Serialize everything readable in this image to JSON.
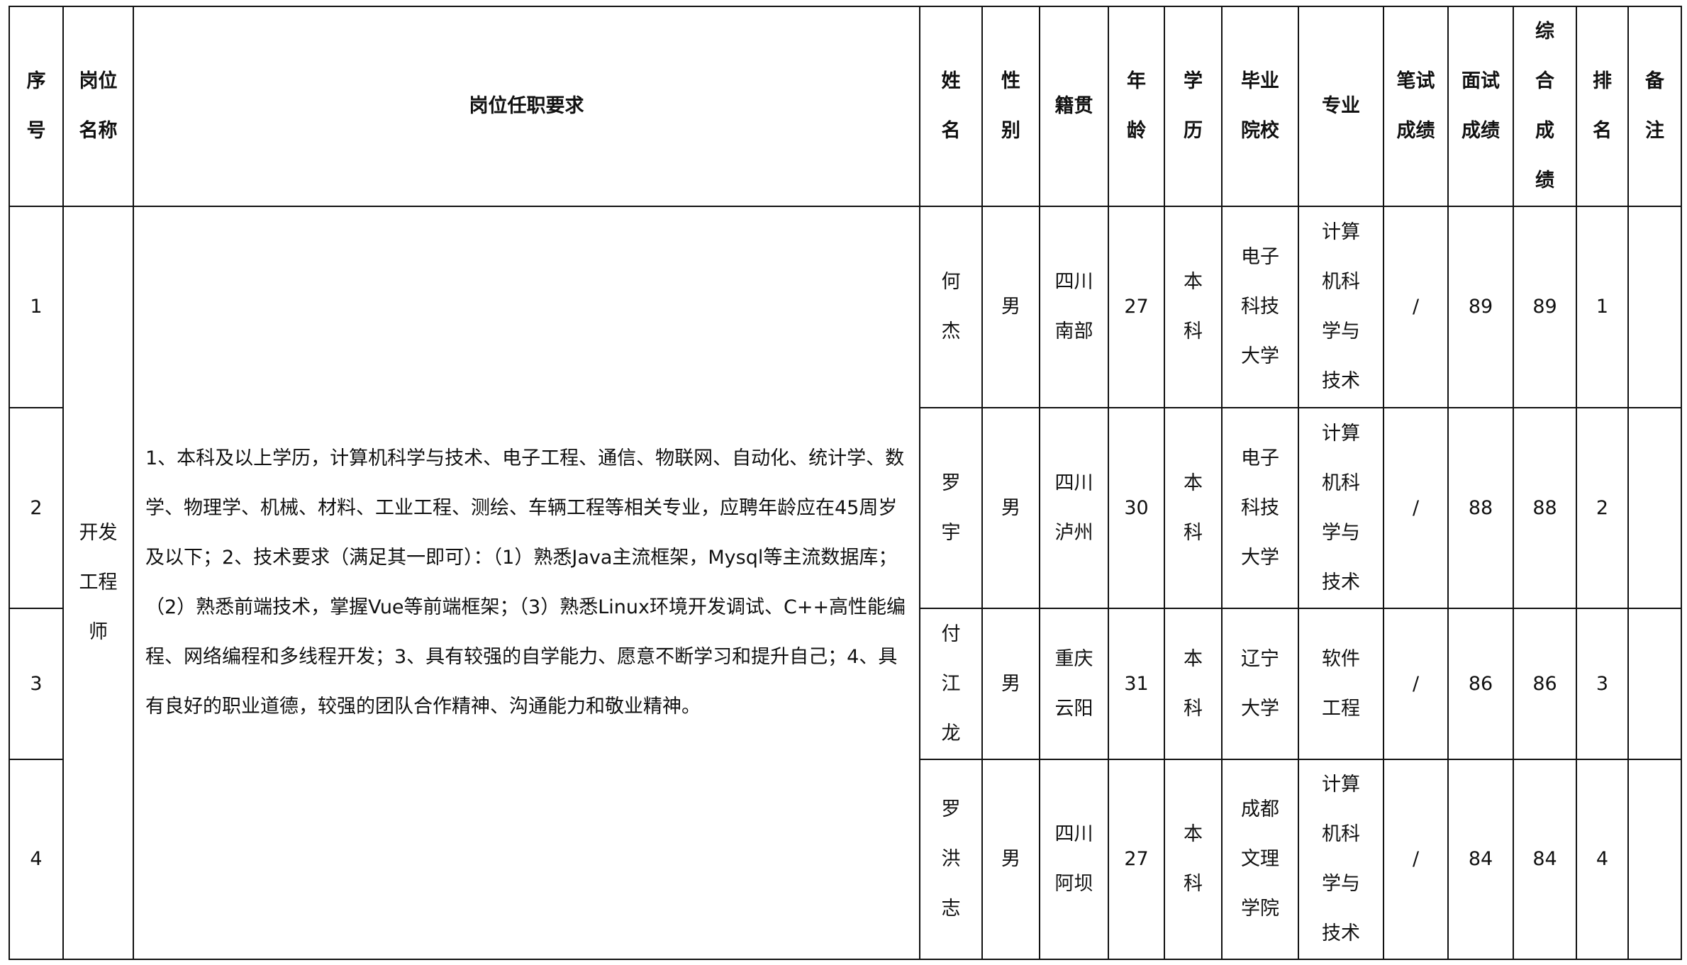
{
  "headers": {
    "seq": "序号",
    "position": "岗位名称",
    "requirements": "岗位任职要求",
    "name": "姓名",
    "gender": "性别",
    "origin": "籍贯",
    "age": "年龄",
    "education": "学历",
    "school": "毕业院校",
    "major": "专业",
    "written": "笔试成绩",
    "interview": "面试成绩",
    "total": "综合成绩",
    "rank": "排名",
    "remark": "备注"
  },
  "position": "开发工程师",
  "requirements": "1、本科及以上学历，计算机科学与技术、电子工程、通信、物联网、自动化、统计学、数学、物理学、机械、材料、工业工程、测绘、车辆工程等相关专业，应聘年龄应在45周岁及以下；2、技术要求（满足其一即可）：（1）熟悉Java主流框架，Mysql等主流数据库；（2）熟悉前端技术，掌握Vue等前端框架；（3）熟悉Linux环境开发调试、C++高性能编程、网络编程和多线程开发；3、具有较强的自学能力、愿意不断学习和提升自己；4、具有良好的职业道德，较强的团队合作精神、沟通能力和敬业精神。",
  "rows": [
    {
      "seq": "1",
      "name": "何杰",
      "gender": "男",
      "origin": "四川南部",
      "age": "27",
      "education": "本科",
      "school": "电子科技大学",
      "major": "计算机科学与技术",
      "written": "/",
      "interview": "89",
      "total": "89",
      "rank": "1",
      "remark": ""
    },
    {
      "seq": "2",
      "name": "罗宇",
      "gender": "男",
      "origin": "四川泸州",
      "age": "30",
      "education": "本科",
      "school": "电子科技大学",
      "major": "计算机科学与技术",
      "written": "/",
      "interview": "88",
      "total": "88",
      "rank": "2",
      "remark": ""
    },
    {
      "seq": "3",
      "name": "付江龙",
      "gender": "男",
      "origin": "重庆云阳",
      "age": "31",
      "education": "本科",
      "school": "辽宁大学",
      "major": "软件工程",
      "written": "/",
      "interview": "86",
      "total": "86",
      "rank": "3",
      "remark": ""
    },
    {
      "seq": "4",
      "name": "罗洪志",
      "gender": "男",
      "origin": "四川阿坝",
      "age": "27",
      "education": "本科",
      "school": "成都文理学院",
      "major": "计算机科学与技术",
      "written": "/",
      "interview": "84",
      "total": "84",
      "rank": "4",
      "remark": ""
    }
  ]
}
